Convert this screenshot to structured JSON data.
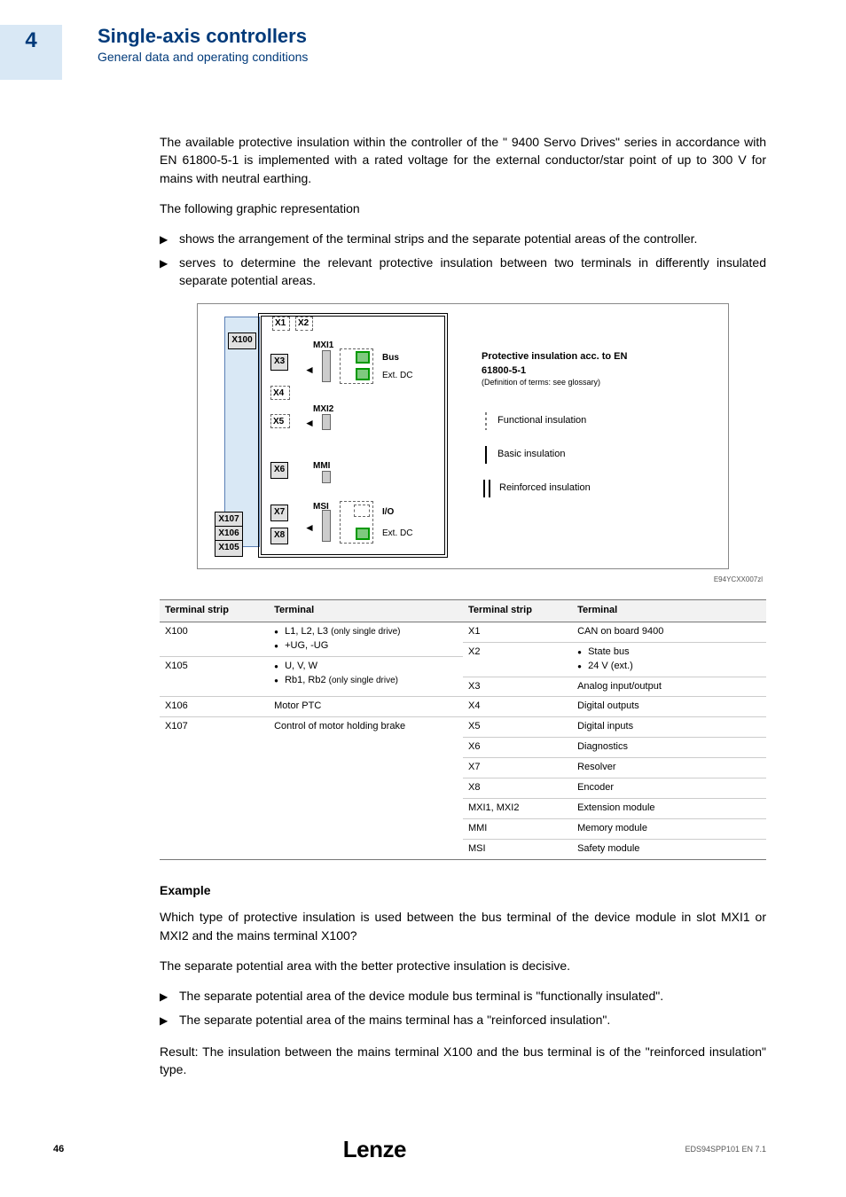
{
  "header": {
    "chapter": "4",
    "title": "Single-axis controllers",
    "subtitle": "General data and operating conditions"
  },
  "intro": {
    "p1": "The available protective insulation within the controller of the \" 9400 Servo Drives\" series in accordance with EN 61800-5-1 is implemented with a rated voltage for the external conductor/star point of up to 300 V for mains with neutral earthing.",
    "p2": "The following graphic representation",
    "b1": "shows the arrangement of the terminal strips and the separate potential areas of the controller.",
    "b2": "serves to determine the relevant protective insulation between two terminals in differently insulated separate potential areas."
  },
  "diagram": {
    "x100": "X100",
    "x107": "X107",
    "x106": "X106",
    "x105": "X105",
    "x1": "X1",
    "x2": "X2",
    "x3": "X3",
    "x4": "X4",
    "x5": "X5",
    "x6": "X6",
    "x7": "X7",
    "x8": "X8",
    "mxi1": "MXI1",
    "mxi2": "MXI2",
    "mmi": "MMI",
    "msi": "MSI",
    "bus": "Bus",
    "extdc": "Ext. DC",
    "io": "I/O",
    "legend_title": "Protective insulation acc. to EN 61800-5-1",
    "legend_sub": "(Definition of terms: see glossary)",
    "functional": "Functional insulation",
    "basic": "Basic insulation",
    "reinforced": "Reinforced insulation",
    "figref": "E94YCXX007zl"
  },
  "table": {
    "h1": "Terminal strip",
    "h2": "Terminal",
    "h3": "Terminal strip",
    "h4": "Terminal",
    "rows_left": [
      {
        "strip": "X100",
        "term_html": "<ul class='subbullet'><li>L1, L2, L3 <span class='note-small'>(only single drive)</span></li><li>+UG, -UG</li></ul>"
      },
      {
        "strip": "X105",
        "term_html": "<ul class='subbullet'><li>U, V, W</li><li>Rb1, Rb2 <span class='note-small'>(only single drive)</span></li></ul>"
      },
      {
        "strip": "X106",
        "term_html": "Motor PTC"
      },
      {
        "strip": "X107",
        "term_html": "Control of motor holding brake"
      }
    ],
    "rows_right": [
      {
        "strip": "X1",
        "term": "CAN on board 9400"
      },
      {
        "strip": "X2",
        "term_html": "<ul class='subbullet'><li>State bus</li><li>24 V (ext.)</li></ul>"
      },
      {
        "strip": "X3",
        "term": "Analog input/output"
      },
      {
        "strip": "X4",
        "term": "Digital outputs"
      },
      {
        "strip": "X5",
        "term": "Digital inputs"
      },
      {
        "strip": "X6",
        "term": "Diagnostics"
      },
      {
        "strip": "X7",
        "term": "Resolver"
      },
      {
        "strip": "X8",
        "term": "Encoder"
      },
      {
        "strip": "MXI1, MXI2",
        "term": "Extension module"
      },
      {
        "strip": "MMI",
        "term": "Memory module"
      },
      {
        "strip": "MSI",
        "term": "Safety module"
      }
    ]
  },
  "example": {
    "heading": "Example",
    "p1": "Which type of protective insulation is used between the bus terminal of the device module in slot MXI1 or MXI2 and the mains terminal X100?",
    "p2": "The separate potential area with the better protective insulation is decisive.",
    "b1": "The separate potential area of the device module bus terminal is \"functionally insulated\".",
    "b2": "The separate potential area of the mains terminal has a \"reinforced insulation\".",
    "p3": "Result: The insulation between the mains terminal X100 and the bus terminal is of the \"reinforced insulation\" type."
  },
  "footer": {
    "page": "46",
    "logo": "Lenze",
    "ref": "EDS94SPP101 EN 7.1"
  }
}
